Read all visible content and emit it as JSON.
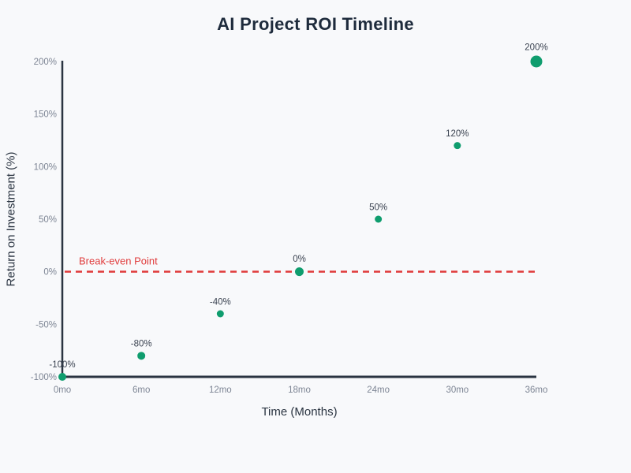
{
  "chart_data": {
    "type": "scatter",
    "title": "AI Project ROI Timeline",
    "xlabel": "Time (Months)",
    "ylabel": "Return on Investment (%)",
    "x": [
      0,
      6,
      12,
      18,
      24,
      30,
      36
    ],
    "x_tick_labels": [
      "0mo",
      "6mo",
      "12mo",
      "18mo",
      "24mo",
      "30mo",
      "36mo"
    ],
    "values": [
      -100,
      -80,
      -40,
      0,
      50,
      120,
      200
    ],
    "point_labels": [
      "-100%",
      "-80%",
      "-40%",
      "0%",
      "50%",
      "120%",
      "200%"
    ],
    "marker_radii": [
      5,
      5,
      4.5,
      5.5,
      4.5,
      4.5,
      7.5
    ],
    "y_ticks": [
      -100,
      -50,
      0,
      50,
      100,
      150,
      200
    ],
    "y_tick_labels": [
      "-100%",
      "-50%",
      "0%",
      "50%",
      "100%",
      "150%",
      "200%"
    ],
    "xlim": [
      0,
      36
    ],
    "ylim": [
      -100,
      200
    ],
    "grid": false,
    "legend": null,
    "annotation": {
      "label": "Break-even Point",
      "y": 0
    },
    "colors": {
      "marker": "#0f9d6e",
      "breakeven": "#e03c3c",
      "axis": "#2a3441",
      "tick_text": "#7d8594",
      "label_text": "#3a4250",
      "title_text": "#1e2b3c",
      "background": "#f8f9fb"
    }
  }
}
